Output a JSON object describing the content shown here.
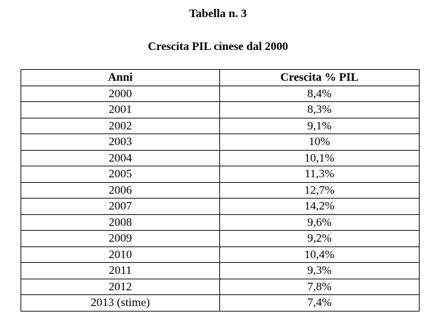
{
  "table_label": "Tabella n. 3",
  "table_title": "Crescita PIL cinese dal 2000",
  "columns": [
    "Anni",
    "Crescita % PIL"
  ],
  "rows": [
    {
      "anno": "2000",
      "crescita": "8,4%"
    },
    {
      "anno": "2001",
      "crescita": "8,3%"
    },
    {
      "anno": "2002",
      "crescita": "9,1%"
    },
    {
      "anno": "2003",
      "crescita": "10%"
    },
    {
      "anno": "2004",
      "crescita": "10,1%"
    },
    {
      "anno": "2005",
      "crescita": "11,3%"
    },
    {
      "anno": "2006",
      "crescita": "12,7%"
    },
    {
      "anno": "2007",
      "crescita": "14,2%"
    },
    {
      "anno": "2008",
      "crescita": "9,6%"
    },
    {
      "anno": "2009",
      "crescita": "9,2%"
    },
    {
      "anno": "2010",
      "crescita": "10,4%"
    },
    {
      "anno": "2011",
      "crescita": "9,3%"
    },
    {
      "anno": "2012",
      "crescita": "7,8%"
    },
    {
      "anno": "2013 (stime)",
      "crescita": "7,4%"
    }
  ]
}
